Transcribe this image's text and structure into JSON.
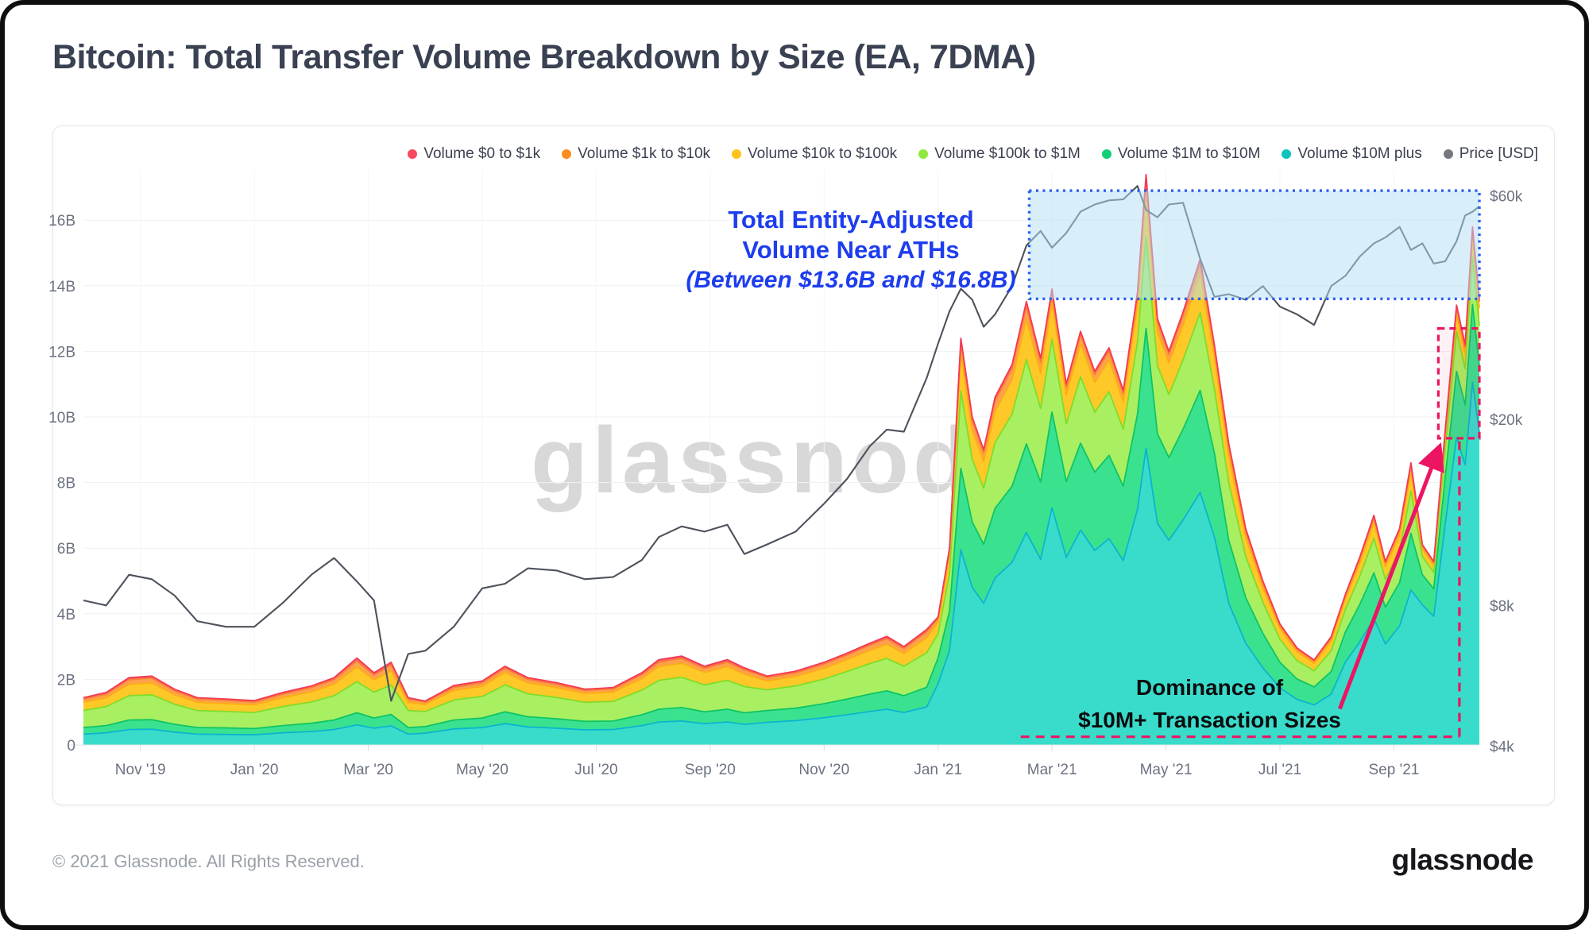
{
  "header": {
    "title": "Bitcoin: Total Transfer Volume Breakdown by Size (EA, 7DMA)"
  },
  "watermark": "glassnode",
  "footer": {
    "copyright": "© 2021 Glassnode. All Rights Reserved.",
    "brand": "glassnode"
  },
  "legend": [
    {
      "label": "Volume $0 to $1k",
      "color": "#f8485e"
    },
    {
      "label": "Volume $1k to $10k",
      "color": "#fb8c21"
    },
    {
      "label": "Volume $10k to $100k",
      "color": "#ffc31c"
    },
    {
      "label": "Volume $100k to $1M",
      "color": "#8fe83b"
    },
    {
      "label": "Volume $1M to $10M",
      "color": "#12cf76"
    },
    {
      "label": "Volume $10M plus",
      "color": "#0cc4bc"
    },
    {
      "label": "Price [USD]",
      "color": "#75797f"
    }
  ],
  "axes": {
    "y_left": {
      "ticks": [
        {
          "v": 0,
          "label": "0"
        },
        {
          "v": 2,
          "label": "2B"
        },
        {
          "v": 4,
          "label": "4B"
        },
        {
          "v": 6,
          "label": "6B"
        },
        {
          "v": 8,
          "label": "8B"
        },
        {
          "v": 10,
          "label": "10B"
        },
        {
          "v": 12,
          "label": "12B"
        },
        {
          "v": 14,
          "label": "14B"
        },
        {
          "v": 16,
          "label": "16B"
        }
      ]
    },
    "y_right": {
      "ticks": [
        {
          "k": 60,
          "label": "$60k"
        },
        {
          "k": 20,
          "label": "$20k"
        },
        {
          "k": 8,
          "label": "$8k"
        },
        {
          "k": 4,
          "label": "$4k"
        }
      ]
    },
    "x": {
      "ticks": [
        {
          "m": 1,
          "label": "Nov '19"
        },
        {
          "m": 3,
          "label": "Jan '20"
        },
        {
          "m": 5,
          "label": "Mar '20"
        },
        {
          "m": 7,
          "label": "May '20"
        },
        {
          "m": 9,
          "label": "Jul '20"
        },
        {
          "m": 11,
          "label": "Sep '20"
        },
        {
          "m": 13,
          "label": "Nov '20"
        },
        {
          "m": 15,
          "label": "Jan '21"
        },
        {
          "m": 17,
          "label": "Mar '21"
        },
        {
          "m": 19,
          "label": "May '21"
        },
        {
          "m": 21,
          "label": "Jul '21"
        },
        {
          "m": 23,
          "label": "Sep '21"
        }
      ]
    }
  },
  "annotations": {
    "ath": {
      "line1": "Total Entity-Adjusted",
      "line2": "Volume Near ATHs",
      "line3": "(Between $13.6B and $16.8B)",
      "color": "#1d3dee"
    },
    "blue_box": {
      "m0": 16.6,
      "m1": 24.5,
      "b_low": 13.6,
      "b_high": 16.9,
      "stroke": "#2b5cf0",
      "fill": "rgba(177,224,246,0.5)"
    },
    "red_box": {
      "m0": 23.78,
      "m1": 24.5,
      "b_low": 9.35,
      "b_high": 12.7,
      "stroke": "#ec1563"
    },
    "dashed_h": {
      "m0": 16.45,
      "m1": 24.15,
      "b": 0.25
    },
    "dashed_v": {
      "m": 24.15,
      "b0": 0.25,
      "b1": 9.35
    },
    "arrow": {
      "m0": 22.05,
      "b0": 1.1,
      "m1": 23.78,
      "b1": 9.0,
      "color": "#ec1563"
    },
    "dominance": {
      "line1": "Dominance of",
      "line2": "$10M+ Transaction Sizes",
      "color": "#0c0c0e"
    }
  },
  "colors": {
    "grid_h": "#f0f1f4",
    "grid_v": "#f4f5f7",
    "baseline": "#dfe3e8",
    "tick": "#d9dde2",
    "axis_text": "#6b7280",
    "price": "#4d525c",
    "series": [
      {
        "name": "Volume $10M plus",
        "fill": "#39dcca",
        "stroke": "#0bb4cf"
      },
      {
        "name": "Volume $1M to $10M",
        "fill": "#3ae290",
        "stroke": "#0fc464"
      },
      {
        "name": "Volume $100k to $1M",
        "fill": "#a9ef62",
        "stroke": "#7fdd28"
      },
      {
        "name": "Volume $10k to $100k",
        "fill": "#ffc829",
        "stroke": "#fdae13"
      },
      {
        "name": "Volume $1k to $10k",
        "fill": "#ffa14e",
        "stroke": "#fb7d33"
      },
      {
        "name": "Volume $0 to $1k",
        "fill": "#fb5a6b",
        "stroke": "#f43a56"
      }
    ]
  },
  "chart_data": {
    "type": "area",
    "title": "Bitcoin: Total Transfer Volume Breakdown by Size (EA, 7DMA)",
    "stack_order_bottom_to_top": [
      "Volume $10M plus",
      "Volume $1M to $10M",
      "Volume $100k to $1M",
      "Volume $10k to $100k",
      "Volume $1k to $10k",
      "Volume $0 to $1k"
    ],
    "x_unit": "months since Oct 2019 (ticks every 2 months)",
    "x_range_labels": [
      "Oct '19",
      "Oct '21"
    ],
    "ylim_left_billions": [
      0,
      17.5
    ],
    "y_right_log_ticks_kUSD": [
      60,
      20,
      8,
      4
    ],
    "legend_position": "top-right",
    "grid": "horizontal+vertical, light",
    "rows_format": [
      "m",
      "vol_$10M_plus_B",
      "vol_$1M_$10M_B",
      "vol_$100k_$1M_B",
      "vol_$10k_$100k_B",
      "vol_$1k_$10k_B",
      "vol_$0_$1k_B",
      "price_kUSD"
    ],
    "rows": [
      [
        0.0,
        0.33,
        0.2,
        0.52,
        0.25,
        0.1,
        0.04,
        8.2
      ],
      [
        0.4,
        0.37,
        0.22,
        0.58,
        0.27,
        0.11,
        0.05,
        8.0
      ],
      [
        0.8,
        0.47,
        0.29,
        0.74,
        0.35,
        0.14,
        0.06,
        9.3
      ],
      [
        1.2,
        0.48,
        0.29,
        0.76,
        0.36,
        0.15,
        0.06,
        9.1
      ],
      [
        1.6,
        0.39,
        0.24,
        0.61,
        0.29,
        0.12,
        0.05,
        8.4
      ],
      [
        2.0,
        0.33,
        0.2,
        0.52,
        0.25,
        0.1,
        0.04,
        7.4
      ],
      [
        2.5,
        0.32,
        0.2,
        0.5,
        0.24,
        0.1,
        0.04,
        7.2
      ],
      [
        3.0,
        0.31,
        0.19,
        0.49,
        0.23,
        0.09,
        0.04,
        7.2
      ],
      [
        3.5,
        0.37,
        0.22,
        0.58,
        0.27,
        0.11,
        0.05,
        8.1
      ],
      [
        4.0,
        0.41,
        0.25,
        0.65,
        0.31,
        0.13,
        0.05,
        9.3
      ],
      [
        4.4,
        0.47,
        0.29,
        0.74,
        0.35,
        0.14,
        0.06,
        10.1
      ],
      [
        4.8,
        0.61,
        0.37,
        0.95,
        0.45,
        0.19,
        0.08,
        9.0
      ],
      [
        5.1,
        0.51,
        0.31,
        0.79,
        0.37,
        0.15,
        0.07,
        8.2
      ],
      [
        5.4,
        0.58,
        0.35,
        0.9,
        0.43,
        0.18,
        0.08,
        5.0
      ],
      [
        5.7,
        0.33,
        0.2,
        0.52,
        0.25,
        0.1,
        0.04,
        6.3
      ],
      [
        6.0,
        0.36,
        0.2,
        0.46,
        0.22,
        0.07,
        0.03,
        6.4
      ],
      [
        6.5,
        0.49,
        0.27,
        0.61,
        0.29,
        0.1,
        0.05,
        7.2
      ],
      [
        7.0,
        0.53,
        0.29,
        0.66,
        0.31,
        0.11,
        0.05,
        8.7
      ],
      [
        7.4,
        0.65,
        0.36,
        0.82,
        0.38,
        0.13,
        0.06,
        8.9
      ],
      [
        7.8,
        0.55,
        0.31,
        0.7,
        0.33,
        0.11,
        0.05,
        9.6
      ],
      [
        8.3,
        0.51,
        0.29,
        0.65,
        0.3,
        0.1,
        0.05,
        9.5
      ],
      [
        8.8,
        0.46,
        0.26,
        0.58,
        0.27,
        0.09,
        0.04,
        9.1
      ],
      [
        9.3,
        0.47,
        0.26,
        0.6,
        0.28,
        0.1,
        0.04,
        9.2
      ],
      [
        9.8,
        0.59,
        0.33,
        0.75,
        0.35,
        0.12,
        0.06,
        10.0
      ],
      [
        10.1,
        0.7,
        0.39,
        0.88,
        0.42,
        0.14,
        0.07,
        11.2
      ],
      [
        10.5,
        0.73,
        0.41,
        0.92,
        0.43,
        0.15,
        0.07,
        11.8
      ],
      [
        10.9,
        0.65,
        0.36,
        0.82,
        0.38,
        0.13,
        0.06,
        11.5
      ],
      [
        11.3,
        0.7,
        0.39,
        0.88,
        0.42,
        0.14,
        0.07,
        11.9
      ],
      [
        11.6,
        0.63,
        0.35,
        0.8,
        0.38,
        0.13,
        0.06,
        10.3
      ],
      [
        12.0,
        0.69,
        0.36,
        0.63,
        0.27,
        0.11,
        0.04,
        10.8
      ],
      [
        12.5,
        0.74,
        0.38,
        0.68,
        0.29,
        0.11,
        0.05,
        11.5
      ],
      [
        13.0,
        0.83,
        0.43,
        0.75,
        0.33,
        0.13,
        0.05,
        13.2
      ],
      [
        13.4,
        0.92,
        0.48,
        0.84,
        0.36,
        0.14,
        0.06,
        14.9
      ],
      [
        13.8,
        1.02,
        0.53,
        0.93,
        0.4,
        0.16,
        0.06,
        17.5
      ],
      [
        14.1,
        1.09,
        0.56,
        0.99,
        0.43,
        0.17,
        0.07,
        19.0
      ],
      [
        14.4,
        0.99,
        0.51,
        0.9,
        0.39,
        0.15,
        0.06,
        18.8
      ],
      [
        14.8,
        1.16,
        0.6,
        1.05,
        0.46,
        0.18,
        0.07,
        24.5
      ],
      [
        15.0,
        1.87,
        0.78,
        0.74,
        0.35,
        0.12,
        0.04,
        29.0
      ],
      [
        15.2,
        2.88,
        1.2,
        1.14,
        0.54,
        0.18,
        0.06,
        34.0
      ],
      [
        15.4,
        5.95,
        2.48,
        2.36,
        1.12,
        0.37,
        0.12,
        38.0
      ],
      [
        15.6,
        4.8,
        2.0,
        1.9,
        0.9,
        0.3,
        0.1,
        36.0
      ],
      [
        15.8,
        4.32,
        1.8,
        1.71,
        0.81,
        0.27,
        0.09,
        31.5
      ],
      [
        16.0,
        5.09,
        2.12,
        2.01,
        0.95,
        0.32,
        0.11,
        33.5
      ],
      [
        16.3,
        5.57,
        2.32,
        2.2,
        1.04,
        0.35,
        0.12,
        38.5
      ],
      [
        16.55,
        6.48,
        2.7,
        2.57,
        1.22,
        0.41,
        0.14,
        47.0
      ],
      [
        16.8,
        5.66,
        2.36,
        2.24,
        1.06,
        0.35,
        0.12,
        50.5
      ],
      [
        17.0,
        7.23,
        2.92,
        2.22,
        1.11,
        0.31,
        0.11,
        46.5
      ],
      [
        17.25,
        5.72,
        2.31,
        1.76,
        0.88,
        0.24,
        0.09,
        50.0
      ],
      [
        17.5,
        6.55,
        2.65,
        2.02,
        1.01,
        0.28,
        0.1,
        55.5
      ],
      [
        17.75,
        5.93,
        2.39,
        1.82,
        0.91,
        0.25,
        0.09,
        57.5
      ],
      [
        18.0,
        6.29,
        2.54,
        1.94,
        0.97,
        0.27,
        0.1,
        58.7
      ],
      [
        18.25,
        5.62,
        2.27,
        1.73,
        0.86,
        0.24,
        0.09,
        59.0
      ],
      [
        18.5,
        7.18,
        2.9,
        2.21,
        1.1,
        0.3,
        0.11,
        63.0
      ],
      [
        18.65,
        9.05,
        3.65,
        2.78,
        1.39,
        0.38,
        0.14,
        56.0
      ],
      [
        18.85,
        6.76,
        2.73,
        2.08,
        1.04,
        0.29,
        0.1,
        54.0
      ],
      [
        19.05,
        6.24,
        2.52,
        1.92,
        0.96,
        0.26,
        0.1,
        57.5
      ],
      [
        19.3,
        6.86,
        2.77,
        2.11,
        1.06,
        0.29,
        0.11,
        58.0
      ],
      [
        19.6,
        7.7,
        3.11,
        2.37,
        1.18,
        0.33,
        0.12,
        44.0
      ],
      [
        19.85,
        6.34,
        2.56,
        1.95,
        0.98,
        0.27,
        0.1,
        36.5
      ],
      [
        20.1,
        4.32,
        1.93,
        1.75,
        0.83,
        0.26,
        0.11,
        37.0
      ],
      [
        20.4,
        3.1,
        1.39,
        1.25,
        0.59,
        0.18,
        0.08,
        36.0
      ],
      [
        20.7,
        2.35,
        1.05,
        0.95,
        0.45,
        0.14,
        0.06,
        38.5
      ],
      [
        21.0,
        1.74,
        0.78,
        0.7,
        0.33,
        0.1,
        0.04,
        34.8
      ],
      [
        21.3,
        1.39,
        0.62,
        0.56,
        0.27,
        0.08,
        0.04,
        33.5
      ],
      [
        21.6,
        1.22,
        0.55,
        0.49,
        0.23,
        0.07,
        0.03,
        31.8
      ],
      [
        21.9,
        1.55,
        0.69,
        0.63,
        0.3,
        0.09,
        0.04,
        38.5
      ],
      [
        22.15,
        2.53,
        0.92,
        0.69,
        0.32,
        0.1,
        0.04,
        40.5
      ],
      [
        22.4,
        3.14,
        1.14,
        0.86,
        0.4,
        0.13,
        0.05,
        44.5
      ],
      [
        22.65,
        3.85,
        1.4,
        1.05,
        0.49,
        0.15,
        0.06,
        47.5
      ],
      [
        22.85,
        3.08,
        1.12,
        0.84,
        0.39,
        0.12,
        0.04,
        48.9
      ],
      [
        23.1,
        3.63,
        1.32,
        0.99,
        0.46,
        0.15,
        0.05,
        51.5
      ],
      [
        23.3,
        4.73,
        1.72,
        1.29,
        0.6,
        0.19,
        0.07,
        46.0
      ],
      [
        23.5,
        4.27,
        0.92,
        0.55,
        0.24,
        0.09,
        0.04,
        47.5
      ],
      [
        23.7,
        3.92,
        0.84,
        0.5,
        0.22,
        0.08,
        0.03,
        43.0
      ],
      [
        23.9,
        6.72,
        1.44,
        0.86,
        0.38,
        0.13,
        0.06,
        43.5
      ],
      [
        24.1,
        9.38,
        2.01,
        1.21,
        0.54,
        0.19,
        0.08,
        48.0
      ],
      [
        24.25,
        8.54,
        1.83,
        1.1,
        0.49,
        0.17,
        0.07,
        54.5
      ],
      [
        24.38,
        11.06,
        2.37,
        1.42,
        0.63,
        0.22,
        0.09,
        55.5
      ],
      [
        24.5,
        9.52,
        2.04,
        1.22,
        0.54,
        0.19,
        0.08,
        57.0
      ]
    ]
  }
}
